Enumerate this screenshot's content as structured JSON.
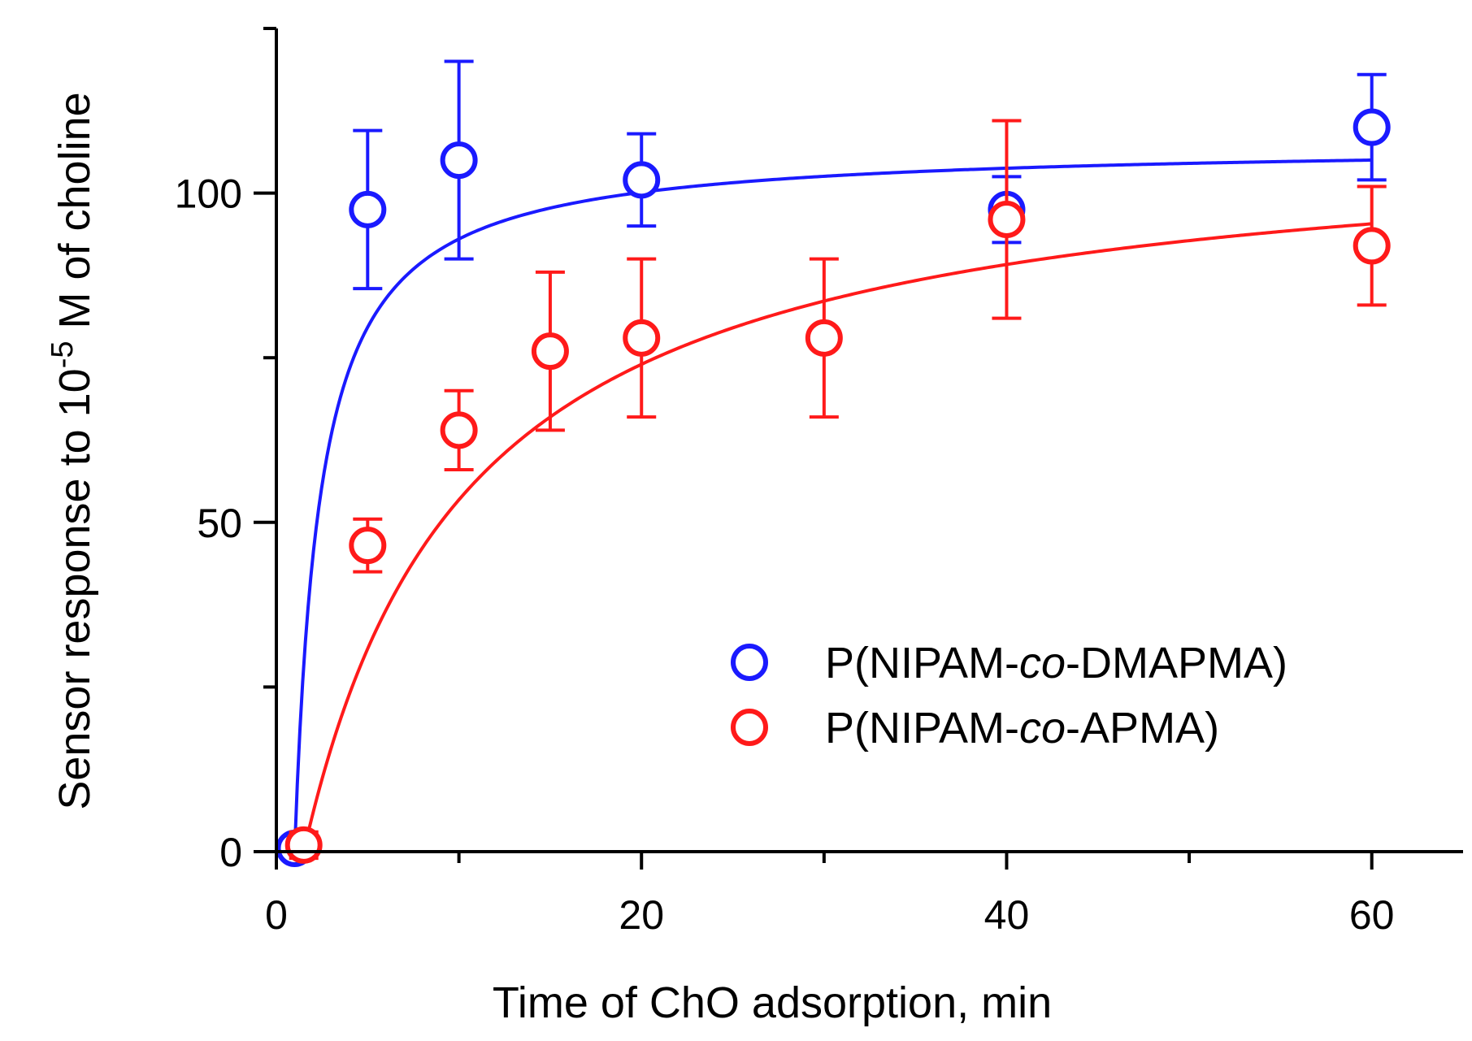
{
  "chart_data": {
    "type": "scatter",
    "title": "",
    "xlabel": "Time of ChO adsorption, min",
    "ylabel": {
      "prefix": "Sensor response to 10",
      "exponent": "-5",
      "suffix": " M of choline"
    },
    "xlim": [
      0,
      65
    ],
    "ylim": [
      0,
      125
    ],
    "x_ticks": [
      0,
      20,
      40,
      60
    ],
    "x_minor_ticks": [
      10,
      30,
      50
    ],
    "y_ticks": [
      0,
      50,
      100
    ],
    "y_minor_ticks": [
      25,
      75,
      125
    ],
    "grid": false,
    "legend_position": "lower-right",
    "series": [
      {
        "name": "P(NIPAM-co-DMAPMA)",
        "name_parts": [
          "P(NIPAM-",
          "co",
          "-DMAPMA)"
        ],
        "color": "#1a1aff",
        "marker": "open-circle",
        "x": [
          1,
          5,
          10,
          20,
          40,
          60
        ],
        "y": [
          0.5,
          97.5,
          105,
          102,
          97.5,
          110
        ],
        "err": [
          0.5,
          12,
          15,
          7,
          5,
          8
        ],
        "fit": {
          "model": "saturation",
          "ymax": 107.5,
          "k": 1.4,
          "x0": 1.0
        }
      },
      {
        "name": "P(NIPAM-co-APMA)",
        "name_parts": [
          "P(NIPAM-",
          "co",
          "-APMA)"
        ],
        "color": "#ff1a1a",
        "marker": "open-circle",
        "x": [
          1.5,
          5,
          10,
          15,
          20,
          30,
          40,
          60
        ],
        "y": [
          1,
          46.5,
          64,
          76,
          78,
          78,
          96,
          92
        ],
        "err": [
          2,
          4,
          6,
          12,
          12,
          12,
          15,
          9
        ],
        "fit": {
          "model": "saturation",
          "ymax": 110,
          "k": 9.0,
          "x0": 1.5
        }
      }
    ]
  }
}
